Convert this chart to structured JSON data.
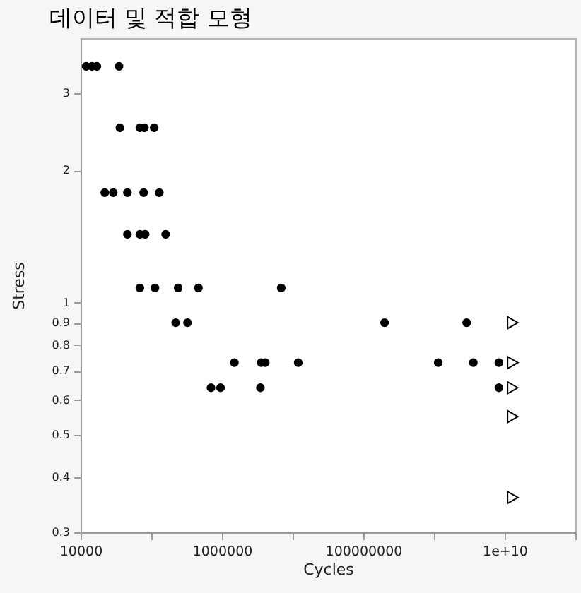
{
  "chart_data": {
    "type": "scatter",
    "title": "데이터 및 적합 모형",
    "xlabel": "Cycles",
    "ylabel": "Stress",
    "log": "xy",
    "xlim": [
      10000,
      100000000000
    ],
    "ylim": [
      0.3,
      4
    ],
    "xticks": [
      10000,
      {
        "value": 100000,
        "label": null
      },
      1000000,
      {
        "value": 10000000,
        "label": null
      },
      100000000,
      {
        "value": 1000000000,
        "label": null
      },
      {
        "value": 10000000000,
        "label": "1e+10"
      },
      {
        "value": 100000000000,
        "label": null
      }
    ],
    "yticks": [
      0.3,
      0.4,
      0.5,
      0.6,
      0.7,
      0.8,
      0.9,
      1,
      2,
      3
    ],
    "series": [
      {
        "color": "#000000",
        "marker": "circle",
        "x": [
          12000,
          14500,
          17000,
          35000,
          36000,
          69000,
          80000,
          110000,
          22000,
          29000,
          46000,
          78000,
          130000,
          46000,
          69000,
          82000,
          160000,
          69000,
          113000,
          240000,
          465000,
          6900000,
          222000,
          326000,
          200000000,
          2900000000,
          1500000,
          3600000,
          4100000,
          12000000,
          1150000000,
          3600000000,
          8300000000,
          700000,
          955000,
          3500000,
          8300000000
        ],
        "values": [
          3.45,
          3.45,
          3.45,
          3.45,
          2.5,
          2.5,
          2.5,
          2.5,
          1.78,
          1.78,
          1.78,
          1.78,
          1.78,
          1.43,
          1.43,
          1.43,
          1.43,
          1.08,
          1.08,
          1.08,
          1.08,
          1.08,
          0.9,
          0.9,
          0.9,
          0.9,
          0.73,
          0.73,
          0.73,
          0.73,
          0.73,
          0.73,
          0.73,
          0.64,
          0.64,
          0.64,
          0.64
        ]
      },
      {
        "color": "#000000",
        "marker": "triangle",
        "x": [
          13000000000,
          13000000000,
          13000000000,
          13000000000,
          13000000000
        ],
        "values": [
          0.9,
          0.73,
          0.64,
          0.55,
          0.36
        ]
      }
    ]
  }
}
